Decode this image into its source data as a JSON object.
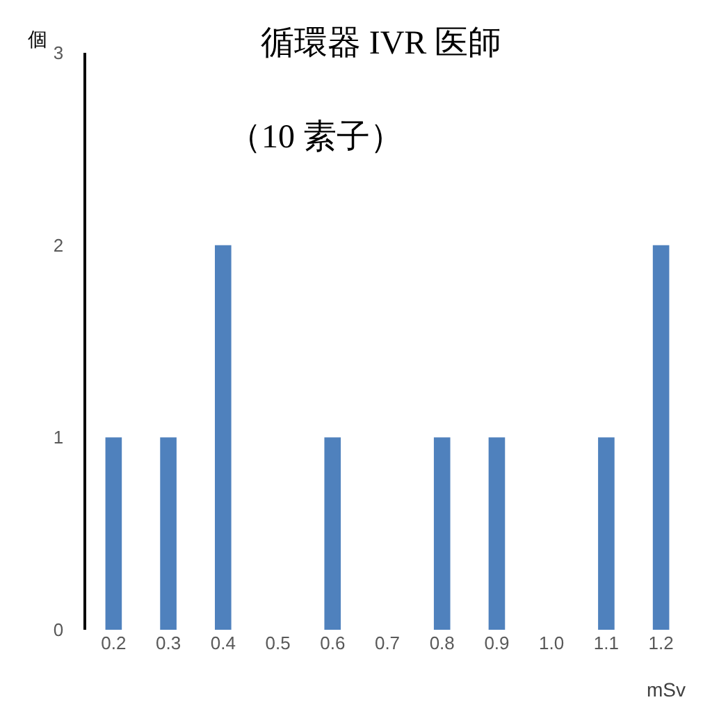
{
  "chart_data": {
    "type": "bar",
    "title": "循環器 IVR 医師",
    "subtitle": "（10 素子）",
    "xlabel": "mSv",
    "ylabel": "個",
    "categories": [
      "0.2",
      "0.3",
      "0.4",
      "0.5",
      "0.6",
      "0.7",
      "0.8",
      "0.9",
      "1.0",
      "1.1",
      "1.2"
    ],
    "series": [
      {
        "color": "#4f81bd",
        "values": [
          1,
          1,
          2,
          0,
          1,
          0,
          1,
          1,
          0,
          1,
          2
        ]
      }
    ],
    "ylim": [
      0,
      3
    ],
    "yticks": [
      0,
      1,
      2,
      3
    ]
  }
}
